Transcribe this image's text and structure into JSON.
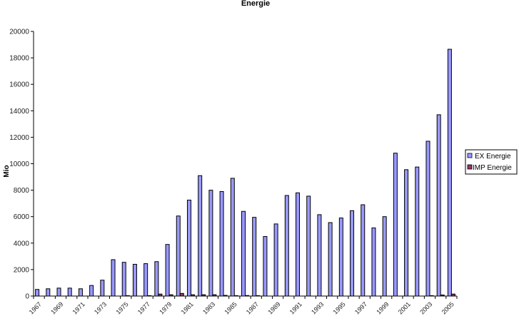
{
  "chart_data": {
    "type": "bar",
    "title": "Energie",
    "xlabel": "",
    "ylabel": "Mio",
    "ylim": [
      0,
      20000
    ],
    "yticks": [
      0,
      2000,
      4000,
      6000,
      8000,
      10000,
      12000,
      14000,
      16000,
      18000,
      20000
    ],
    "grid": false,
    "legend_placement": "right",
    "categories": [
      "1967",
      "1968",
      "1969",
      "1970",
      "1971",
      "1972",
      "1973",
      "1974",
      "1975",
      "1976",
      "1977",
      "1978",
      "1979",
      "1980",
      "1981",
      "1982",
      "1983",
      "1984",
      "1985",
      "1986",
      "1987",
      "1988",
      "1989",
      "1990",
      "1991",
      "1992",
      "1993",
      "1994",
      "1995",
      "1996",
      "1997",
      "1998",
      "1999",
      "2000",
      "2001",
      "2002",
      "2003",
      "2004",
      "2005"
    ],
    "xtick_labels": [
      "1967",
      "1969",
      "1971",
      "1973",
      "1975",
      "1977",
      "1979",
      "1981",
      "1983",
      "1985",
      "1987",
      "1989",
      "1991",
      "1993",
      "1995",
      "1997",
      "1999",
      "2001",
      "2003",
      "2005"
    ],
    "series": [
      {
        "name": "EX Energie",
        "color": "#9999ff",
        "values": [
          500,
          550,
          600,
          600,
          550,
          800,
          1200,
          2750,
          2550,
          2400,
          2450,
          2600,
          3900,
          6050,
          7250,
          9100,
          8000,
          7900,
          8900,
          6400,
          5950,
          4500,
          5450,
          7600,
          7800,
          7550,
          6150,
          5550,
          5900,
          6450,
          6900,
          5150,
          6000,
          10800,
          9550,
          9750,
          11700,
          13700,
          18650
        ]
      },
      {
        "name": "IMP Energie",
        "color": "#993366",
        "values": [
          0,
          0,
          0,
          0,
          0,
          0,
          0,
          0,
          30,
          0,
          30,
          150,
          100,
          200,
          100,
          100,
          100,
          50,
          30,
          40,
          30,
          0,
          0,
          0,
          0,
          0,
          0,
          0,
          0,
          0,
          0,
          0,
          0,
          0,
          0,
          0,
          30,
          80,
          150
        ]
      }
    ]
  }
}
